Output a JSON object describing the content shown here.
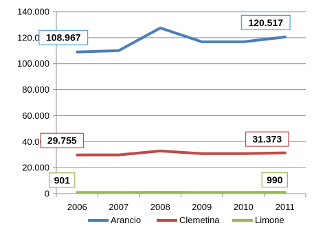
{
  "chart_data": {
    "type": "line",
    "categories": [
      "2006",
      "2007",
      "2008",
      "2009",
      "2010",
      "2011"
    ],
    "y_ticks": [
      "0",
      "20.000",
      "40.000",
      "60.000",
      "80.000",
      "100.000",
      "120.000",
      "140.000"
    ],
    "ylim": [
      0,
      140000
    ],
    "grid": true,
    "legend_position": "bottom",
    "series": [
      {
        "name": "Arancio",
        "color": "#4a7ebb",
        "values": [
          108967,
          110000,
          127500,
          116800,
          116800,
          120517
        ]
      },
      {
        "name": "Clemetina",
        "color": "#be4b48",
        "values": [
          29755,
          29800,
          32800,
          30800,
          30800,
          31373
        ]
      },
      {
        "name": "Limone",
        "color": "#98b954",
        "values": [
          901,
          950,
          1000,
          950,
          950,
          990
        ]
      }
    ],
    "annotations": [
      {
        "text": "108.967",
        "series": 0,
        "index": 0,
        "border": "#4a9fd8"
      },
      {
        "text": "120.517",
        "series": 0,
        "index": 5,
        "border": "#4a9fd8"
      },
      {
        "text": "29.755",
        "series": 1,
        "index": 0,
        "border": "#be4b48"
      },
      {
        "text": "31.373",
        "series": 1,
        "index": 5,
        "border": "#be4b48"
      },
      {
        "text": "901",
        "series": 2,
        "index": 0,
        "border": "#98b954"
      },
      {
        "text": "990",
        "series": 2,
        "index": 5,
        "border": "#98b954"
      }
    ]
  }
}
